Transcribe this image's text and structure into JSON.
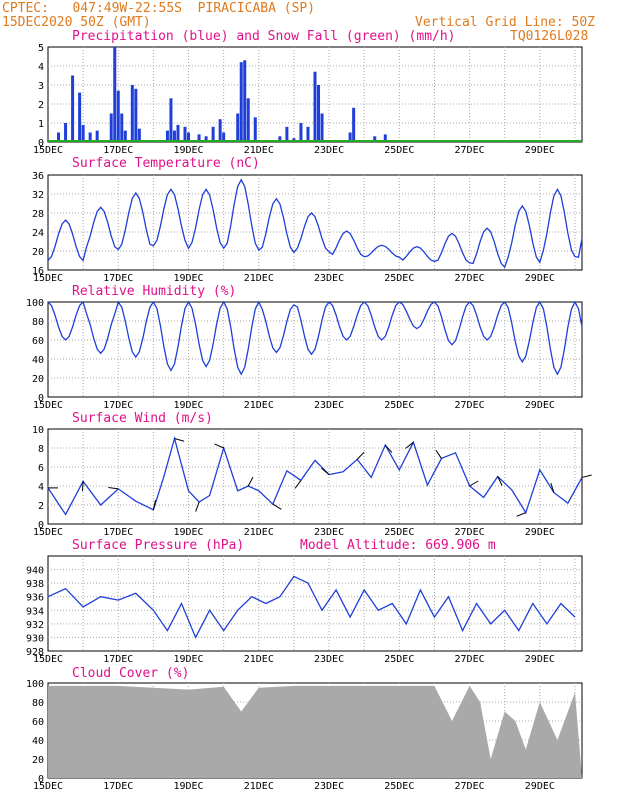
{
  "header": {
    "line1_left": "CPTEC:   047:49W-22:55S  PIRACICABA (SP)",
    "line2_left": "15DEC2020 50Z (GMT)",
    "line2_right": "Vertical Grid Line: 50Z",
    "line3_right": "TQ0126L028"
  },
  "x_tick_labels": [
    "15DEC",
    "17DEC",
    "19DEC",
    "21DEC",
    "23DEC",
    "25DEC",
    "27DEC",
    "29DEC"
  ],
  "colors": {
    "header": "#e07a1f",
    "title": "#e0108a",
    "line": "#1f3fd8",
    "snow": "#22aa22",
    "cloud": "#a9a9a9"
  },
  "panels": {
    "precip": {
      "title": "Precipitation (blue) and Snow Fall (green) (mm/h)"
    },
    "temp": {
      "title": "Surface Temperature (nC)"
    },
    "rh": {
      "title": "Relative Humidity (%)"
    },
    "wind": {
      "title": "Surface Wind (m/s)"
    },
    "pressure": {
      "title": "Surface Pressure (hPa)",
      "extra": "Model Altitude: 669.906 m"
    },
    "cloud": {
      "title": "Cloud Cover (%)"
    }
  },
  "chart_data": [
    {
      "type": "bar",
      "title": "Precipitation (blue) and Snow Fall (green) (mm/h)",
      "ylim": [
        0,
        5
      ],
      "yticks": [
        0,
        1,
        2,
        3,
        4,
        5
      ],
      "x_unit": "days since 15DEC 00Z",
      "series": [
        {
          "name": "Precipitation",
          "x": [
            0.3,
            0.5,
            0.7,
            0.9,
            1.0,
            1.2,
            1.4,
            1.8,
            1.9,
            2.0,
            2.1,
            2.2,
            2.4,
            2.5,
            2.6,
            3.4,
            3.5,
            3.6,
            3.7,
            3.9,
            4.0,
            4.3,
            4.5,
            4.7,
            4.9,
            5.0,
            5.4,
            5.5,
            5.6,
            5.7,
            5.9,
            6.6,
            6.8,
            7.0,
            7.2,
            7.4,
            7.6,
            7.7,
            7.8,
            8.6,
            8.7,
            9.3,
            9.6,
            10.1,
            10.6
          ],
          "values": [
            0.5,
            1.0,
            3.5,
            2.6,
            0.9,
            0.5,
            0.6,
            1.5,
            5.0,
            2.7,
            1.5,
            0.6,
            3.0,
            2.8,
            0.7,
            0.6,
            2.3,
            0.6,
            0.9,
            0.8,
            0.5,
            0.4,
            0.3,
            0.8,
            1.2,
            0.5,
            1.5,
            4.2,
            4.3,
            2.3,
            1.3,
            0.3,
            0.8,
            0.2,
            1.0,
            0.8,
            3.7,
            3.0,
            1.5,
            0.5,
            1.8,
            0.3,
            0.4,
            0.1,
            0.1
          ]
        },
        {
          "name": "Snow Fall",
          "x": [],
          "values": []
        }
      ]
    },
    {
      "type": "line",
      "title": "Surface Temperature (nC)",
      "ylim": [
        16,
        36
      ],
      "yticks": [
        16,
        20,
        24,
        28,
        32,
        36
      ],
      "series": [
        {
          "name": "Temperature",
          "min": [
            18.0,
            20.0,
            20.3,
            21.1,
            20.6,
            20.2,
            19.7,
            19.8,
            18.8,
            18.7,
            17.8,
            17.5,
            16.6,
            17.6,
            18.8,
            17.2
          ],
          "max": [
            26.5,
            29.2,
            32.2,
            33.0,
            33.0,
            35.0,
            31.0,
            28.0,
            24.2,
            21.2,
            20.9,
            23.7,
            24.8,
            29.5,
            33.0,
            33.0
          ]
        }
      ]
    },
    {
      "type": "line",
      "title": "Relative Humidity (%)",
      "ylim": [
        0,
        100
      ],
      "yticks": [
        0,
        20,
        40,
        60,
        80,
        100
      ],
      "series": [
        {
          "name": "RH",
          "min": [
            60,
            46,
            42,
            28,
            32,
            24,
            47,
            45,
            60,
            60,
            72,
            55,
            60,
            37,
            24,
            25
          ],
          "max": [
            100,
            92,
            100,
            100,
            100,
            100,
            97,
            100,
            100,
            100,
            100,
            100,
            100,
            100,
            100,
            100
          ]
        }
      ]
    },
    {
      "type": "line",
      "title": "Surface Wind (m/s)",
      "ylim": [
        0,
        10
      ],
      "yticks": [
        0,
        2,
        4,
        6,
        8,
        10
      ],
      "series": [
        {
          "name": "Wind speed",
          "x": [
            0,
            0.5,
            1.0,
            1.5,
            2.0,
            2.5,
            3.0,
            3.3,
            3.6,
            4.0,
            4.3,
            4.6,
            5.0,
            5.4,
            5.7,
            6.0,
            6.4,
            6.8,
            7.2,
            7.6,
            8.0,
            8.4,
            8.8,
            9.2,
            9.6,
            10.0,
            10.4,
            10.8,
            11.2,
            11.6,
            12.0,
            12.4,
            12.8,
            13.2,
            13.6,
            14.0,
            14.4,
            14.8,
            15.2
          ],
          "values": [
            3.8,
            1.0,
            4.5,
            2.0,
            3.7,
            2.4,
            1.5,
            5.0,
            9.0,
            3.5,
            2.3,
            3.0,
            8.0,
            3.5,
            4.0,
            3.5,
            2.1,
            5.6,
            4.6,
            6.7,
            5.2,
            5.5,
            6.8,
            4.9,
            8.3,
            5.7,
            8.6,
            4.1,
            6.9,
            7.5,
            4.0,
            2.8,
            5.0,
            3.6,
            1.2,
            5.7,
            3.3,
            2.2,
            4.9
          ]
        }
      ]
    },
    {
      "type": "line",
      "title": "Surface Pressure (hPa)",
      "ylim": [
        928,
        942
      ],
      "yticks": [
        928,
        930,
        932,
        934,
        936,
        938,
        940
      ],
      "series": [
        {
          "name": "Pressure",
          "x": [
            0,
            0.5,
            1.0,
            1.5,
            2.0,
            2.5,
            3.0,
            3.4,
            3.8,
            4.2,
            4.6,
            5.0,
            5.4,
            5.8,
            6.2,
            6.6,
            7.0,
            7.4,
            7.8,
            8.2,
            8.6,
            9.0,
            9.4,
            9.8,
            10.2,
            10.6,
            11.0,
            11.4,
            11.8,
            12.2,
            12.6,
            13.0,
            13.4,
            13.8,
            14.2,
            14.6,
            15.0
          ],
          "values": [
            936.0,
            937.2,
            934.5,
            936.0,
            935.5,
            936.5,
            934.0,
            931.0,
            935.0,
            930.0,
            934.0,
            931.0,
            934.0,
            936.0,
            935.0,
            936.0,
            939.0,
            938.0,
            934.0,
            937.0,
            933.0,
            937.0,
            934.0,
            935.0,
            932.0,
            937.0,
            933.0,
            936.0,
            931.0,
            935.0,
            932.0,
            934.0,
            931.0,
            935.0,
            932.0,
            935.0,
            933.0
          ]
        }
      ]
    },
    {
      "type": "area",
      "title": "Cloud Cover (%)",
      "ylim": [
        0,
        100
      ],
      "yticks": [
        0,
        20,
        40,
        60,
        80,
        100
      ],
      "series": [
        {
          "name": "Cloud cover",
          "x": [
            0,
            1,
            2,
            3,
            4,
            5,
            5.5,
            6,
            7,
            8,
            9,
            10,
            11,
            11.5,
            12,
            12.3,
            12.6,
            13,
            13.3,
            13.6,
            14,
            14.5,
            15
          ],
          "values": [
            97,
            97,
            97,
            95,
            93,
            96,
            70,
            95,
            97,
            97,
            97,
            97,
            97,
            60,
            97,
            80,
            20,
            70,
            60,
            30,
            80,
            40,
            90
          ]
        }
      ]
    }
  ]
}
